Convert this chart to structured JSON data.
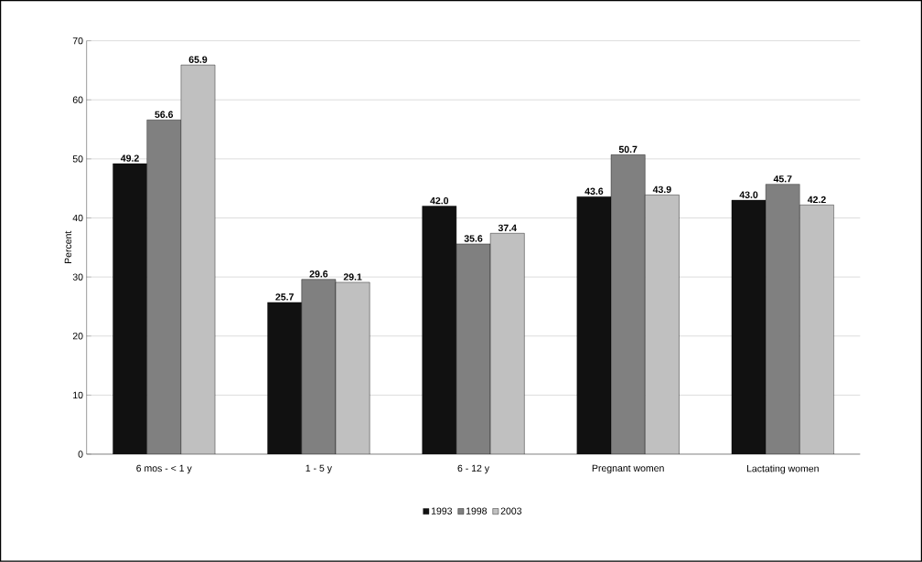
{
  "chart_data": {
    "type": "bar",
    "ylabel": "Percent",
    "categories": [
      "6 mos - < 1 y",
      "1 - 5 y",
      "6 - 12 y",
      "Pregnant women",
      "Lactating women"
    ],
    "series": [
      {
        "name": "1993",
        "color": "#111111",
        "values": [
          49.2,
          25.7,
          42.0,
          43.6,
          43.0
        ],
        "value_labels": [
          "49.2",
          "25.7",
          "42.0",
          "43.6",
          "43.0"
        ]
      },
      {
        "name": "1998",
        "color": "#808080",
        "values": [
          56.6,
          29.6,
          35.6,
          50.7,
          45.7
        ],
        "value_labels": [
          "56.6",
          "29.6",
          "35.6",
          "50.7",
          "45.7"
        ]
      },
      {
        "name": "2003",
        "color": "#c0c0c0",
        "values": [
          65.9,
          29.1,
          37.4,
          43.9,
          42.2
        ],
        "value_labels": [
          "65.9",
          "29.1",
          "37.4",
          "43.9",
          "42.2"
        ]
      }
    ],
    "ylim": [
      0,
      70
    ],
    "yticks": [
      0,
      10,
      20,
      30,
      40,
      50,
      60,
      70
    ],
    "grid": "y",
    "legend": "bottom"
  }
}
